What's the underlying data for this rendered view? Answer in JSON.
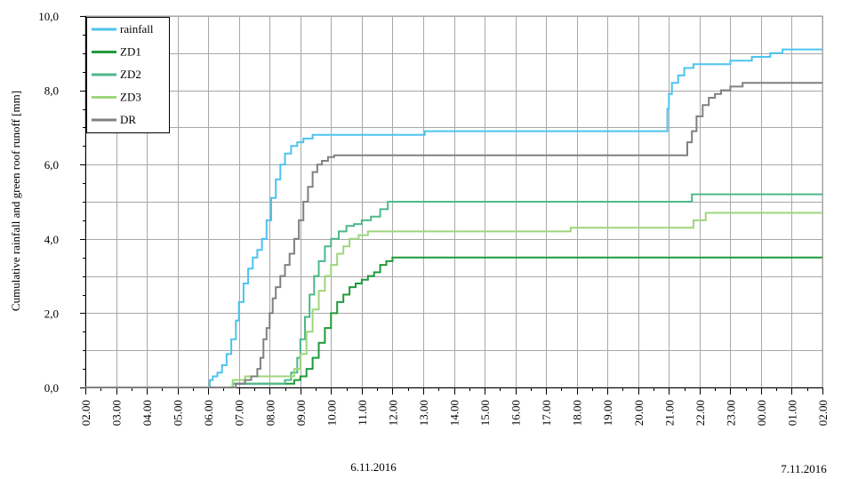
{
  "chart_data": {
    "type": "line",
    "ylabel": "Cumulative rainfall and green roof runoff [mm]",
    "ylim": [
      0,
      10
    ],
    "yticks": [
      "0,0",
      "2,0",
      "4,0",
      "6,0",
      "8,0",
      "10,0"
    ],
    "xlim": [
      2,
      26
    ],
    "xticks": [
      "02.00",
      "03.00",
      "04.00",
      "05.00",
      "06.00",
      "07.00",
      "08.00",
      "09.00",
      "10.00",
      "11.00",
      "12.00",
      "13.00",
      "14.00",
      "15.00",
      "16.00",
      "17.00",
      "18.00",
      "19.00",
      "20.00",
      "21.00",
      "22.00",
      "23.00",
      "00.00",
      "01.00",
      "02.00"
    ],
    "date_labels": [
      "6.11.2016",
      "7.11.2016"
    ],
    "grid": true,
    "legend_position": "top-left",
    "series": [
      {
        "name": "rainfall",
        "color": "#4dc3ee",
        "points": [
          [
            2,
            0
          ],
          [
            6,
            0
          ],
          [
            6.05,
            0.2
          ],
          [
            6.15,
            0.3
          ],
          [
            6.3,
            0.4
          ],
          [
            6.45,
            0.6
          ],
          [
            6.6,
            0.9
          ],
          [
            6.75,
            1.3
          ],
          [
            6.9,
            1.8
          ],
          [
            7.0,
            2.3
          ],
          [
            7.15,
            2.8
          ],
          [
            7.3,
            3.2
          ],
          [
            7.45,
            3.5
          ],
          [
            7.6,
            3.7
          ],
          [
            7.75,
            4.0
          ],
          [
            7.9,
            4.5
          ],
          [
            8.05,
            5.1
          ],
          [
            8.2,
            5.6
          ],
          [
            8.35,
            6.0
          ],
          [
            8.5,
            6.3
          ],
          [
            8.7,
            6.5
          ],
          [
            8.9,
            6.6
          ],
          [
            9.1,
            6.7
          ],
          [
            9.4,
            6.8
          ],
          [
            13,
            6.8
          ],
          [
            13.05,
            6.9
          ],
          [
            20.9,
            6.9
          ],
          [
            20.95,
            7.5
          ],
          [
            21.0,
            7.9
          ],
          [
            21.1,
            8.2
          ],
          [
            21.3,
            8.4
          ],
          [
            21.5,
            8.6
          ],
          [
            21.8,
            8.7
          ],
          [
            22.9,
            8.7
          ],
          [
            23.0,
            8.8
          ],
          [
            23.7,
            8.9
          ],
          [
            24.3,
            9.0
          ],
          [
            24.7,
            9.1
          ],
          [
            26,
            9.1
          ]
        ]
      },
      {
        "name": "ZD1",
        "color": "#1f9a3c",
        "points": [
          [
            2,
            0
          ],
          [
            6.7,
            0
          ],
          [
            6.8,
            0.1
          ],
          [
            8.6,
            0.1
          ],
          [
            8.8,
            0.2
          ],
          [
            9.0,
            0.3
          ],
          [
            9.2,
            0.5
          ],
          [
            9.4,
            0.8
          ],
          [
            9.6,
            1.2
          ],
          [
            9.8,
            1.6
          ],
          [
            10.0,
            2.0
          ],
          [
            10.2,
            2.3
          ],
          [
            10.4,
            2.5
          ],
          [
            10.6,
            2.7
          ],
          [
            10.8,
            2.8
          ],
          [
            11.0,
            2.9
          ],
          [
            11.2,
            3.0
          ],
          [
            11.4,
            3.1
          ],
          [
            11.6,
            3.3
          ],
          [
            11.8,
            3.4
          ],
          [
            12.0,
            3.5
          ],
          [
            26,
            3.5
          ]
        ]
      },
      {
        "name": "ZD2",
        "color": "#4db88a",
        "points": [
          [
            2,
            0
          ],
          [
            6.7,
            0
          ],
          [
            6.8,
            0.1
          ],
          [
            8.3,
            0.1
          ],
          [
            8.5,
            0.2
          ],
          [
            8.7,
            0.4
          ],
          [
            8.9,
            0.8
          ],
          [
            9.0,
            1.3
          ],
          [
            9.15,
            1.9
          ],
          [
            9.3,
            2.5
          ],
          [
            9.45,
            3.0
          ],
          [
            9.6,
            3.4
          ],
          [
            9.8,
            3.8
          ],
          [
            10.0,
            4.0
          ],
          [
            10.25,
            4.2
          ],
          [
            10.5,
            4.35
          ],
          [
            10.75,
            4.4
          ],
          [
            11.0,
            4.5
          ],
          [
            11.3,
            4.6
          ],
          [
            11.6,
            4.8
          ],
          [
            11.85,
            5.0
          ],
          [
            21.7,
            5.0
          ],
          [
            21.75,
            5.2
          ],
          [
            26,
            5.2
          ]
        ]
      },
      {
        "name": "ZD3",
        "color": "#9fd67c",
        "points": [
          [
            2,
            0
          ],
          [
            6.7,
            0
          ],
          [
            6.8,
            0.2
          ],
          [
            7.2,
            0.3
          ],
          [
            8.6,
            0.3
          ],
          [
            8.8,
            0.5
          ],
          [
            9.0,
            0.9
          ],
          [
            9.2,
            1.5
          ],
          [
            9.4,
            2.1
          ],
          [
            9.6,
            2.6
          ],
          [
            9.8,
            3.0
          ],
          [
            10.0,
            3.3
          ],
          [
            10.2,
            3.6
          ],
          [
            10.4,
            3.8
          ],
          [
            10.6,
            4.0
          ],
          [
            10.9,
            4.1
          ],
          [
            11.2,
            4.2
          ],
          [
            17.7,
            4.2
          ],
          [
            17.8,
            4.3
          ],
          [
            21.7,
            4.3
          ],
          [
            21.8,
            4.5
          ],
          [
            22.1,
            4.5
          ],
          [
            22.2,
            4.7
          ],
          [
            26,
            4.7
          ]
        ]
      },
      {
        "name": "DR",
        "color": "#808080",
        "points": [
          [
            2,
            0
          ],
          [
            6.8,
            0
          ],
          [
            6.9,
            0.1
          ],
          [
            7.2,
            0.2
          ],
          [
            7.4,
            0.3
          ],
          [
            7.6,
            0.5
          ],
          [
            7.7,
            0.8
          ],
          [
            7.8,
            1.3
          ],
          [
            7.9,
            1.6
          ],
          [
            8.0,
            2.0
          ],
          [
            8.1,
            2.4
          ],
          [
            8.2,
            2.7
          ],
          [
            8.35,
            3.0
          ],
          [
            8.5,
            3.3
          ],
          [
            8.65,
            3.6
          ],
          [
            8.8,
            4.0
          ],
          [
            8.95,
            4.5
          ],
          [
            9.1,
            5.0
          ],
          [
            9.25,
            5.4
          ],
          [
            9.4,
            5.8
          ],
          [
            9.55,
            6.0
          ],
          [
            9.7,
            6.1
          ],
          [
            9.9,
            6.2
          ],
          [
            10.1,
            6.25
          ],
          [
            21.5,
            6.25
          ],
          [
            21.6,
            6.6
          ],
          [
            21.75,
            6.9
          ],
          [
            21.9,
            7.3
          ],
          [
            22.1,
            7.6
          ],
          [
            22.3,
            7.8
          ],
          [
            22.5,
            7.9
          ],
          [
            22.7,
            8.0
          ],
          [
            23.0,
            8.1
          ],
          [
            23.4,
            8.2
          ],
          [
            26,
            8.2
          ]
        ]
      }
    ]
  }
}
